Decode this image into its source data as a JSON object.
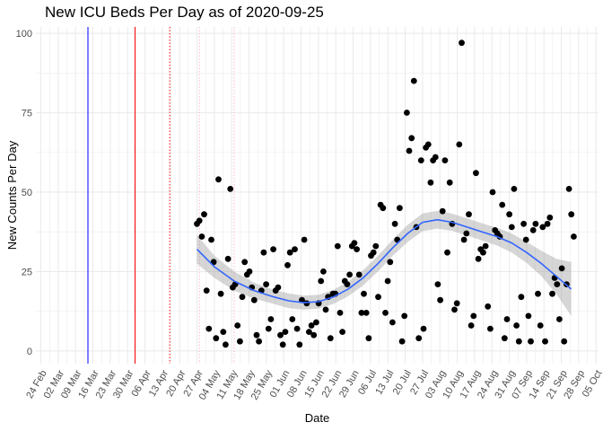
{
  "chart_data": {
    "type": "scatter",
    "title": "New ICU Beds Per Day as of 2020-09-25",
    "xlabel": "Date",
    "ylabel": "New Counts Per Day",
    "ylim": [
      -4,
      102
    ],
    "xlim": [
      -2,
      225
    ],
    "yticks": [
      0,
      25,
      50,
      75,
      100
    ],
    "x_ticks": [
      {
        "day": 0,
        "label": "24 Feb"
      },
      {
        "day": 7,
        "label": "02 Mar"
      },
      {
        "day": 14,
        "label": "09 Mar"
      },
      {
        "day": 21,
        "label": "16 Mar"
      },
      {
        "day": 28,
        "label": "23 Mar"
      },
      {
        "day": 35,
        "label": "30 Mar"
      },
      {
        "day": 42,
        "label": "06 Apr"
      },
      {
        "day": 49,
        "label": "13 Apr"
      },
      {
        "day": 56,
        "label": "20 Apr"
      },
      {
        "day": 63,
        "label": "27 Apr"
      },
      {
        "day": 70,
        "label": "04 May"
      },
      {
        "day": 77,
        "label": "11 May"
      },
      {
        "day": 84,
        "label": "18 May"
      },
      {
        "day": 91,
        "label": "25 May"
      },
      {
        "day": 98,
        "label": "01 Jun"
      },
      {
        "day": 105,
        "label": "08 Jun"
      },
      {
        "day": 112,
        "label": "15 Jun"
      },
      {
        "day": 119,
        "label": "22 Jun"
      },
      {
        "day": 126,
        "label": "29 Jun"
      },
      {
        "day": 133,
        "label": "06 Jul"
      },
      {
        "day": 140,
        "label": "13 Jul"
      },
      {
        "day": 147,
        "label": "20 Jul"
      },
      {
        "day": 154,
        "label": "27 Jul"
      },
      {
        "day": 161,
        "label": "03 Aug"
      },
      {
        "day": 168,
        "label": "10 Aug"
      },
      {
        "day": 175,
        "label": "17 Aug"
      },
      {
        "day": 182,
        "label": "24 Aug"
      },
      {
        "day": 189,
        "label": "31 Aug"
      },
      {
        "day": 196,
        "label": "07 Sep"
      },
      {
        "day": 203,
        "label": "14 Sep"
      },
      {
        "day": 210,
        "label": "21 Sep"
      },
      {
        "day": 217,
        "label": "28 Sep"
      },
      {
        "day": 224,
        "label": "05 Oct"
      }
    ],
    "vertical_lines": [
      {
        "day": 19,
        "color": "#0000ff",
        "style": "solid"
      },
      {
        "day": 38,
        "color": "#ff0000",
        "style": "solid"
      },
      {
        "day": 52,
        "color": "#ff0000",
        "style": "dotted"
      },
      {
        "day": 64,
        "color": "#ffb6c1",
        "style": "dotted"
      },
      {
        "day": 78,
        "color": "#ffb6c1",
        "style": "dotted"
      }
    ],
    "points_x_offset_day": 63,
    "points": [
      40,
      41,
      36,
      43,
      19,
      7,
      35,
      28,
      4,
      54,
      18,
      6,
      2,
      29,
      51,
      20,
      21,
      8,
      3,
      17,
      28,
      24,
      25,
      20,
      16,
      5,
      3,
      19,
      31,
      21,
      7,
      10,
      32,
      19,
      20,
      5,
      2,
      6,
      27,
      31,
      10,
      32,
      7,
      2,
      16,
      35,
      15,
      6,
      8,
      5,
      9,
      15,
      22,
      25,
      13,
      17,
      4,
      18,
      18,
      33,
      12,
      6,
      22,
      21,
      24,
      33,
      34,
      32,
      24,
      12,
      18,
      12,
      4,
      30,
      31,
      33,
      17,
      46,
      45,
      12,
      22,
      28,
      9,
      40,
      35,
      45,
      3,
      11,
      75,
      63,
      67,
      85,
      39,
      4,
      60,
      7,
      64,
      65,
      53,
      60,
      61,
      21,
      16,
      44,
      60,
      31,
      53,
      40,
      13,
      15,
      65,
      97,
      35,
      37,
      43,
      8,
      11,
      56,
      29,
      32,
      31,
      33,
      14,
      7,
      50,
      38,
      37,
      36,
      46,
      4,
      10,
      43,
      39,
      51,
      8,
      3,
      17,
      40,
      35,
      11,
      3,
      38,
      40,
      18,
      8,
      39,
      3,
      40,
      42,
      18,
      23,
      21,
      10,
      26,
      3,
      21,
      51,
      43,
      36
    ],
    "smooth": [
      {
        "day": 63,
        "y": 32,
        "lo": 27.5,
        "hi": 36.5
      },
      {
        "day": 70,
        "y": 26.5,
        "lo": 23,
        "hi": 30
      },
      {
        "day": 78,
        "y": 22,
        "lo": 19,
        "hi": 25
      },
      {
        "day": 86,
        "y": 19,
        "lo": 16.5,
        "hi": 21.5
      },
      {
        "day": 94,
        "y": 17,
        "lo": 14.8,
        "hi": 19.2
      },
      {
        "day": 100,
        "y": 15.8,
        "lo": 13.5,
        "hi": 18.1
      },
      {
        "day": 106,
        "y": 15.2,
        "lo": 13,
        "hi": 17.4
      },
      {
        "day": 112,
        "y": 15.5,
        "lo": 13.3,
        "hi": 17.7
      },
      {
        "day": 118,
        "y": 17,
        "lo": 14.8,
        "hi": 19.2
      },
      {
        "day": 124,
        "y": 19.5,
        "lo": 17.2,
        "hi": 21.8
      },
      {
        "day": 130,
        "y": 23,
        "lo": 20.6,
        "hi": 25.4
      },
      {
        "day": 136,
        "y": 27.5,
        "lo": 25,
        "hi": 30
      },
      {
        "day": 142,
        "y": 32.5,
        "lo": 30,
        "hi": 35
      },
      {
        "day": 148,
        "y": 37,
        "lo": 34.3,
        "hi": 39.7
      },
      {
        "day": 154,
        "y": 40.5,
        "lo": 37.7,
        "hi": 43.3
      },
      {
        "day": 160,
        "y": 41.3,
        "lo": 38.5,
        "hi": 44.1
      },
      {
        "day": 166,
        "y": 40.5,
        "lo": 37.8,
        "hi": 43.2
      },
      {
        "day": 172,
        "y": 39,
        "lo": 36.3,
        "hi": 41.7
      },
      {
        "day": 178,
        "y": 37.5,
        "lo": 34.8,
        "hi": 40.2
      },
      {
        "day": 184,
        "y": 36,
        "lo": 33.2,
        "hi": 38.8
      },
      {
        "day": 190,
        "y": 34,
        "lo": 31,
        "hi": 37
      },
      {
        "day": 196,
        "y": 31,
        "lo": 27.7,
        "hi": 34.3
      },
      {
        "day": 202,
        "y": 27.5,
        "lo": 23.5,
        "hi": 31.5
      },
      {
        "day": 208,
        "y": 23.5,
        "lo": 18,
        "hi": 29
      },
      {
        "day": 214,
        "y": 19.5,
        "lo": 11,
        "hi": 28
      }
    ],
    "colors": {
      "points": "#000000",
      "smooth": "#3366ff",
      "band": "#999999",
      "grid": "#ebebeb"
    }
  }
}
